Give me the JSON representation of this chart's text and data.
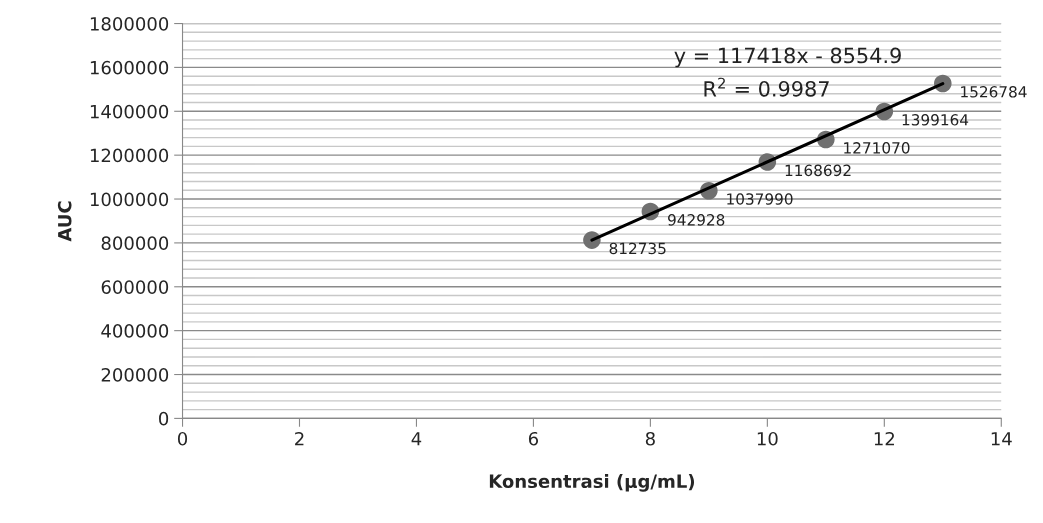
{
  "chart_data": {
    "type": "scatter",
    "xlabel": "Konsentrasi (µg/mL)",
    "ylabel": "AUC",
    "x": [
      7,
      8,
      9,
      10,
      11,
      12,
      13
    ],
    "series": [
      {
        "color": "#707070",
        "values": [
          812735,
          942928,
          1037990,
          1168692,
          1271070,
          1399164,
          1526784
        ],
        "value_labels": [
          "812735",
          "942928",
          "1037990",
          "1168692",
          "1271070",
          "1399164",
          "1526784"
        ]
      },
      {
        "type": "line",
        "marker": "none",
        "color": "#000000",
        "x": [
          7,
          13
        ],
        "values": [
          813000,
          1526000
        ]
      }
    ],
    "annotations": [
      "y = 117418x - 8554.9",
      "R$^{2}$ = 0.9987"
    ],
    "xlim": [
      0,
      14
    ],
    "xticks": [
      0,
      2,
      4,
      6,
      8,
      10,
      12,
      14
    ],
    "ylim": [
      0,
      1800000
    ],
    "yticks": [
      0,
      200000,
      400000,
      600000,
      800000,
      1000000,
      1200000,
      1400000,
      1600000,
      1800000
    ],
    "grid": "y",
    "marker": "circle",
    "legend": false
  }
}
